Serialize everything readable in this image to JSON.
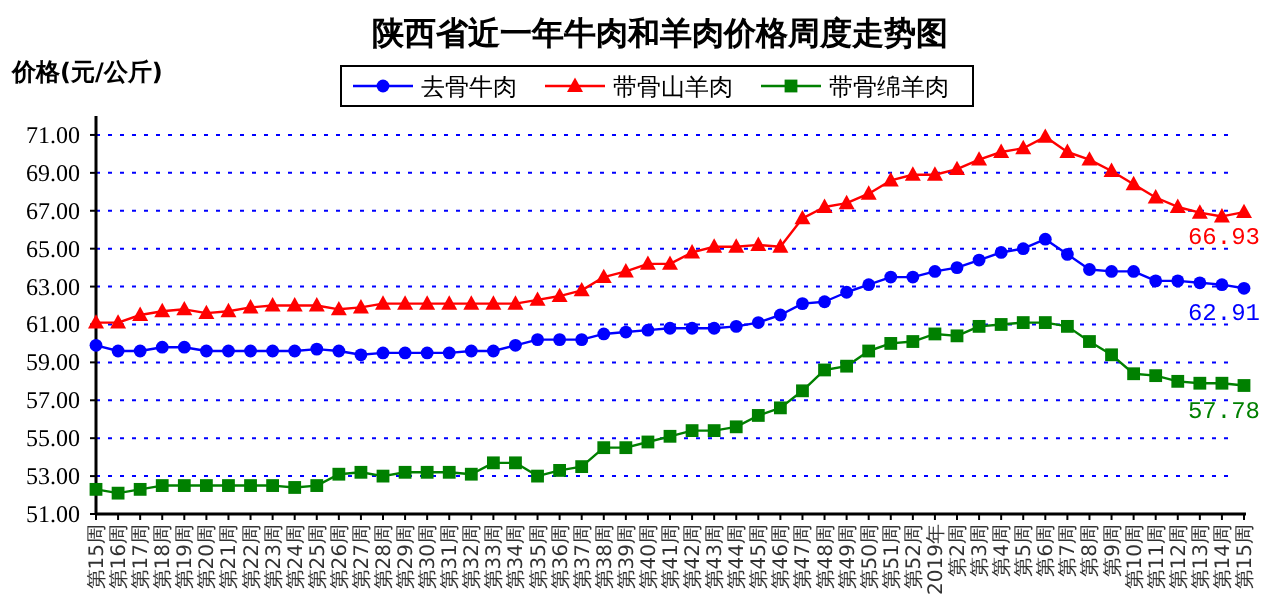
{
  "chart_data": {
    "type": "line",
    "title": "陕西省近一年牛肉和羊肉价格周度走势图",
    "ylabel": "价格(元/公斤)",
    "categories": [
      "第15周",
      "第16周",
      "第17周",
      "第18周",
      "第19周",
      "第20周",
      "第21周",
      "第22周",
      "第23周",
      "第24周",
      "第25周",
      "第26周",
      "第27周",
      "第28周",
      "第29周",
      "第30周",
      "第31周",
      "第32周",
      "第33周",
      "第34周",
      "第35周",
      "第36周",
      "第37周",
      "第38周",
      "第39周",
      "第40周",
      "第41周",
      "第42周",
      "第43周",
      "第44周",
      "第45周",
      "第46周",
      "第47周",
      "第48周",
      "第49周",
      "第50周",
      "第51周",
      "第52周",
      "2019年",
      "第2周",
      "第3周",
      "第4周",
      "第5周",
      "第6周",
      "第7周",
      "第8周",
      "第9周",
      "第10周",
      "第11周",
      "第12周",
      "第13周",
      "第14周",
      "第15周"
    ],
    "series": [
      {
        "name": "去骨牛肉",
        "color": "#0000ff",
        "marker": "circle",
        "values": [
          59.9,
          59.6,
          59.6,
          59.8,
          59.8,
          59.6,
          59.6,
          59.6,
          59.6,
          59.6,
          59.7,
          59.6,
          59.4,
          59.5,
          59.5,
          59.5,
          59.5,
          59.6,
          59.6,
          59.9,
          60.2,
          60.2,
          60.2,
          60.5,
          60.6,
          60.7,
          60.8,
          60.8,
          60.8,
          60.9,
          61.1,
          61.5,
          62.1,
          62.2,
          62.7,
          63.1,
          63.5,
          63.5,
          63.8,
          64.0,
          64.4,
          64.8,
          65.0,
          65.5,
          64.7,
          63.9,
          63.8,
          63.8,
          63.3,
          63.3,
          63.2,
          63.1,
          62.91
        ],
        "value_labels": [
          null,
          null,
          null,
          null,
          null,
          null,
          null,
          null,
          null,
          null,
          null,
          null,
          null,
          null,
          null,
          null,
          null,
          null,
          null,
          null,
          null,
          null,
          null,
          null,
          null,
          null,
          null,
          null,
          null,
          null,
          null,
          null,
          null,
          null,
          null,
          null,
          null,
          null,
          null,
          null,
          null,
          null,
          null,
          null,
          null,
          null,
          null,
          null,
          null,
          null,
          null,
          null,
          "62.91"
        ]
      },
      {
        "name": "带骨山羊肉",
        "color": "#ff0000",
        "marker": "triangle",
        "values": [
          61.1,
          61.1,
          61.5,
          61.7,
          61.8,
          61.6,
          61.7,
          61.9,
          62.0,
          62.0,
          62.0,
          61.8,
          61.9,
          62.1,
          62.1,
          62.1,
          62.1,
          62.1,
          62.1,
          62.1,
          62.3,
          62.5,
          62.8,
          63.5,
          63.8,
          64.2,
          64.2,
          64.8,
          65.1,
          65.1,
          65.2,
          65.1,
          66.6,
          67.2,
          67.4,
          67.9,
          68.6,
          68.9,
          68.9,
          69.2,
          69.7,
          70.1,
          70.3,
          70.9,
          70.1,
          69.7,
          69.1,
          68.4,
          67.7,
          67.2,
          66.9,
          66.7,
          66.93
        ],
        "value_labels": [
          null,
          null,
          null,
          null,
          null,
          null,
          null,
          null,
          null,
          null,
          null,
          null,
          null,
          null,
          null,
          null,
          null,
          null,
          null,
          null,
          null,
          null,
          null,
          null,
          null,
          null,
          null,
          null,
          null,
          null,
          null,
          null,
          null,
          null,
          null,
          null,
          null,
          null,
          null,
          null,
          null,
          null,
          null,
          null,
          null,
          null,
          null,
          null,
          null,
          null,
          null,
          null,
          "66.93"
        ]
      },
      {
        "name": "带骨绵羊肉",
        "color": "#008000",
        "marker": "square",
        "values": [
          52.3,
          52.1,
          52.3,
          52.5,
          52.5,
          52.5,
          52.5,
          52.5,
          52.5,
          52.4,
          52.5,
          53.1,
          53.2,
          53.0,
          53.2,
          53.2,
          53.2,
          53.1,
          53.7,
          53.7,
          53.0,
          53.3,
          53.5,
          54.5,
          54.5,
          54.8,
          55.1,
          55.4,
          55.4,
          55.6,
          56.2,
          56.6,
          57.5,
          58.6,
          58.8,
          59.6,
          60.0,
          60.1,
          60.5,
          60.4,
          60.9,
          61.0,
          61.1,
          61.1,
          60.9,
          60.1,
          59.4,
          58.4,
          58.3,
          58.0,
          57.9,
          57.9,
          57.78
        ],
        "value_labels": [
          null,
          null,
          null,
          null,
          null,
          null,
          null,
          null,
          null,
          null,
          null,
          null,
          null,
          null,
          null,
          null,
          null,
          null,
          null,
          null,
          null,
          null,
          null,
          null,
          null,
          null,
          null,
          null,
          null,
          null,
          null,
          null,
          null,
          null,
          null,
          null,
          null,
          null,
          null,
          null,
          null,
          null,
          null,
          null,
          null,
          null,
          null,
          null,
          null,
          null,
          null,
          null,
          "57.78"
        ]
      }
    ],
    "ylim": [
      51,
      72
    ],
    "yticks": [
      {
        "value": 51,
        "label": "51.00"
      },
      {
        "value": 53,
        "label": "53.00"
      },
      {
        "value": 55,
        "label": "55.00"
      },
      {
        "value": 57,
        "label": "57.00"
      },
      {
        "value": 59,
        "label": "59.00"
      },
      {
        "value": 61,
        "label": "61.00"
      },
      {
        "value": 63,
        "label": "63.00"
      },
      {
        "value": 65,
        "label": "65.00"
      },
      {
        "value": 67,
        "label": "67.00"
      },
      {
        "value": 69,
        "label": "69.00"
      },
      {
        "value": 71,
        "label": "71.00"
      }
    ],
    "grid": "y",
    "legend": "top"
  }
}
